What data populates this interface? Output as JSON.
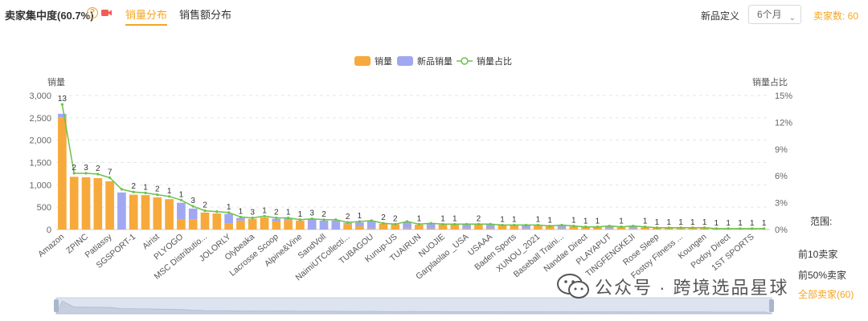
{
  "header": {
    "title": "卖家集中度(60.7%)",
    "help_icon": "question-circle-icon",
    "video_icon": "video-camera-icon",
    "tabs": [
      {
        "label": "销量分布",
        "active": true
      },
      {
        "label": "销售额分布",
        "active": false
      }
    ],
    "new_product_label": "新品定义",
    "period_select": "6个月",
    "seller_count": "卖家数: 60"
  },
  "colors": {
    "sales": "#f7a93b",
    "new_sales": "#a1a8f1",
    "share_line": "#6cc24a",
    "accent": "#f5a623"
  },
  "range": {
    "title": "范围:",
    "options": [
      {
        "label": "前10卖家",
        "selected": false
      },
      {
        "label": "前50%卖家",
        "selected": false
      },
      {
        "label": "全部卖家(60)",
        "selected": true
      }
    ]
  },
  "watermark": "公众号 · 跨境选品星球",
  "chart_data": {
    "type": "bar",
    "left_axis_label": "销量",
    "right_axis_label": "销量占比",
    "ylim": [
      0,
      3000
    ],
    "yticks": [
      "0",
      "500",
      "1,000",
      "1,500",
      "2,000",
      "2,500",
      "3,000"
    ],
    "y2lim": [
      0,
      15
    ],
    "y2ticks": [
      "0%",
      "3%",
      "6%",
      "9%",
      "12%",
      "15%"
    ],
    "legend": [
      "销量",
      "新品销量",
      "销量占比"
    ],
    "x_tick_labels": [
      "Amazon",
      "ZPINC",
      "Patiassy",
      "SGSPORT-1",
      "Airist",
      "PLYOGO",
      "MSC Distributio...",
      "JOLORLY",
      "Olybeaka",
      "Lacrosse Scoop",
      "Alpine&Vine",
      "SandVoll",
      "NaimiUTCollecti...",
      "TUBAGOU",
      "Kunup-US",
      "TUAIRUN",
      "NUOJIE",
      "Garplaolao _USA",
      "USAAA",
      "Baden Sports",
      "XUNOU_2021",
      "Baseball Traini...",
      "Nandae Direct",
      "PLAYAPUT",
      "TINGFENGKEJI",
      "Rose Sleep",
      "Fostoy Fitness ...",
      "Koungen",
      "Podoy Direct",
      "1ST SPORTS"
    ],
    "bar_labels": [
      "13",
      "2",
      "3",
      "2",
      "7",
      "",
      "2",
      "1",
      "2",
      "1",
      "1",
      "3",
      "2",
      "",
      "1",
      "1",
      "3",
      "1",
      "2",
      "1",
      "1",
      "3",
      "2",
      "",
      "2",
      "1",
      "",
      "2",
      "2",
      "",
      "1",
      "",
      "1",
      "1",
      "",
      "2",
      "",
      "1",
      "1",
      "",
      "1",
      "1",
      "",
      "1",
      "1",
      "1",
      "",
      "1",
      "",
      "1",
      "1",
      "1",
      "1",
      "1",
      "1",
      "1",
      "1",
      "1",
      "1",
      "1"
    ],
    "sales": [
      2510,
      1180,
      1170,
      1150,
      1080,
      0,
      780,
      770,
      720,
      680,
      220,
      230,
      380,
      360,
      130,
      200,
      240,
      270,
      180,
      210,
      200,
      0,
      0,
      0,
      120,
      70,
      20,
      130,
      120,
      20,
      110,
      20,
      110,
      110,
      20,
      110,
      20,
      100,
      100,
      20,
      90,
      80,
      20,
      70,
      60,
      60,
      20,
      50,
      20,
      50,
      40,
      40,
      30,
      30,
      30,
      20,
      20,
      20,
      10,
      10
    ],
    "new_sales": [
      80,
      0,
      0,
      0,
      0,
      830,
      0,
      0,
      0,
      0,
      380,
      240,
      0,
      0,
      220,
      60,
      0,
      0,
      60,
      40,
      0,
      230,
      200,
      200,
      30,
      90,
      170,
      0,
      0,
      150,
      0,
      120,
      0,
      0,
      100,
      0,
      100,
      0,
      0,
      80,
      0,
      0,
      70,
      0,
      0,
      0,
      50,
      0,
      50,
      0,
      0,
      0,
      0,
      0,
      0,
      0,
      0,
      0,
      0,
      0
    ],
    "share_percent": [
      14.0,
      6.3,
      6.3,
      6.2,
      5.8,
      4.5,
      4.2,
      4.1,
      3.9,
      3.7,
      3.3,
      2.6,
      2.1,
      2.0,
      1.9,
      1.4,
      1.3,
      1.5,
      1.3,
      1.3,
      1.1,
      1.2,
      1.1,
      1.1,
      0.8,
      0.9,
      1.0,
      0.7,
      0.6,
      0.9,
      0.6,
      0.7,
      0.6,
      0.6,
      0.6,
      0.6,
      0.6,
      0.5,
      0.5,
      0.5,
      0.5,
      0.4,
      0.5,
      0.4,
      0.3,
      0.3,
      0.4,
      0.3,
      0.4,
      0.3,
      0.2,
      0.2,
      0.2,
      0.2,
      0.2,
      0.1,
      0.1,
      0.1,
      0.1,
      0.1
    ]
  }
}
